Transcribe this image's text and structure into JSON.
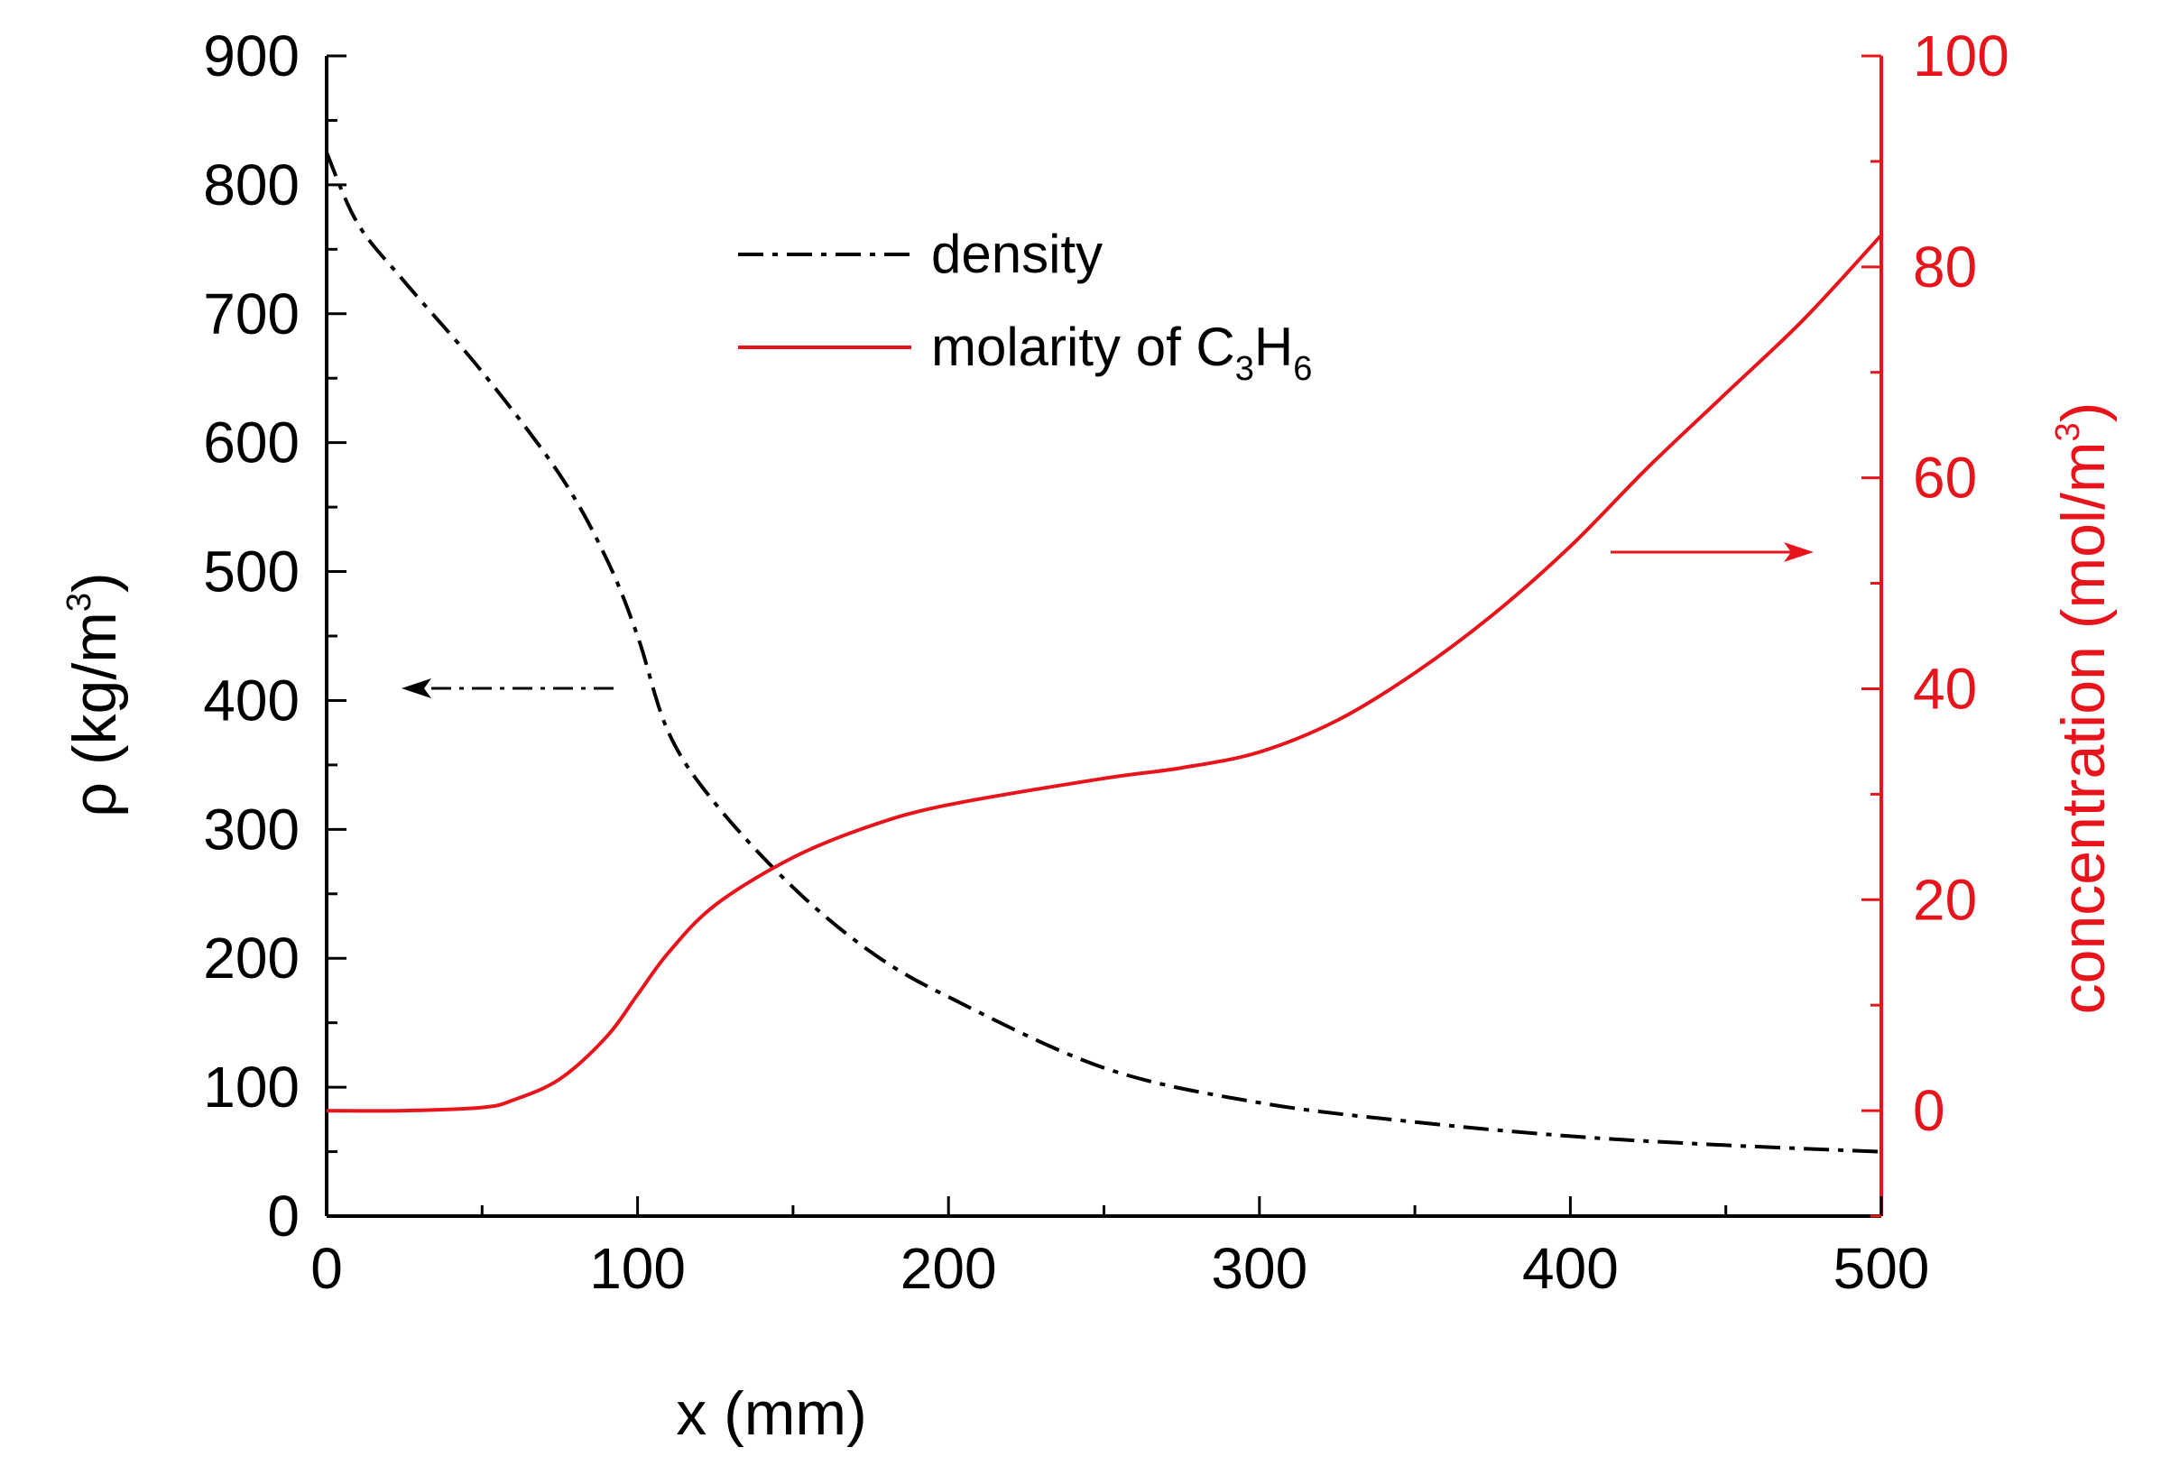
{
  "chart_data": {
    "type": "line",
    "xlabel": "x (mm)",
    "ylabel_left": {
      "base": "ρ (kg/m",
      "sup": "3",
      "end": ")"
    },
    "ylabel_right": {
      "base": "concentration (mol/m",
      "sup": "3",
      "end": ")"
    },
    "xlim": [
      0,
      500
    ],
    "ylim_left": [
      0,
      900
    ],
    "ylim_right": [
      -10,
      100
    ],
    "xticks": [
      "0",
      "100",
      "200",
      "300",
      "400",
      "500"
    ],
    "yticks_left": [
      "0",
      "100",
      "200",
      "300",
      "400",
      "500",
      "600",
      "700",
      "800",
      "900"
    ],
    "yticks_right": [
      "0",
      "20",
      "40",
      "60",
      "80",
      "100"
    ],
    "colors": {
      "density": "#000000",
      "molarity": "#e8141c",
      "axis_right": "#e8141c"
    },
    "legend": [
      {
        "label": "density",
        "style": "dash-dot",
        "color": "#000000"
      },
      {
        "label_main": "molarity of C",
        "sub1": "3",
        "mid": "H",
        "sub2": "6",
        "style": "solid",
        "color": "#e8141c"
      }
    ],
    "series": [
      {
        "name": "density",
        "axis": "left",
        "x": [
          0,
          10,
          25,
          50,
          75,
          90,
          100,
          110,
          125,
          150,
          175,
          200,
          250,
          300,
          350,
          400,
          450,
          500
        ],
        "values": [
          825,
          770,
          725,
          655,
          575,
          510,
          450,
          375,
          320,
          255,
          205,
          170,
          115,
          88,
          73,
          62,
          55,
          50
        ]
      },
      {
        "name": "molarity of C3H6",
        "axis": "right",
        "x": [
          0,
          25,
          50,
          60,
          75,
          90,
          100,
          110,
          125,
          150,
          175,
          200,
          250,
          275,
          300,
          325,
          350,
          375,
          400,
          425,
          450,
          475,
          500
        ],
        "values": [
          0,
          0,
          0.3,
          1,
          3,
          7,
          11,
          15,
          19.5,
          24,
          27,
          29,
          31.5,
          32.5,
          34,
          37,
          41.5,
          47,
          53.5,
          61,
          68,
          75,
          83
        ]
      }
    ],
    "annotations": [
      {
        "type": "arrow",
        "direction": "left",
        "style": "dash-dot",
        "color": "#000000",
        "points_to": "left axis"
      },
      {
        "type": "arrow",
        "direction": "right",
        "style": "solid",
        "color": "#e8141c",
        "points_to": "right axis"
      }
    ]
  }
}
